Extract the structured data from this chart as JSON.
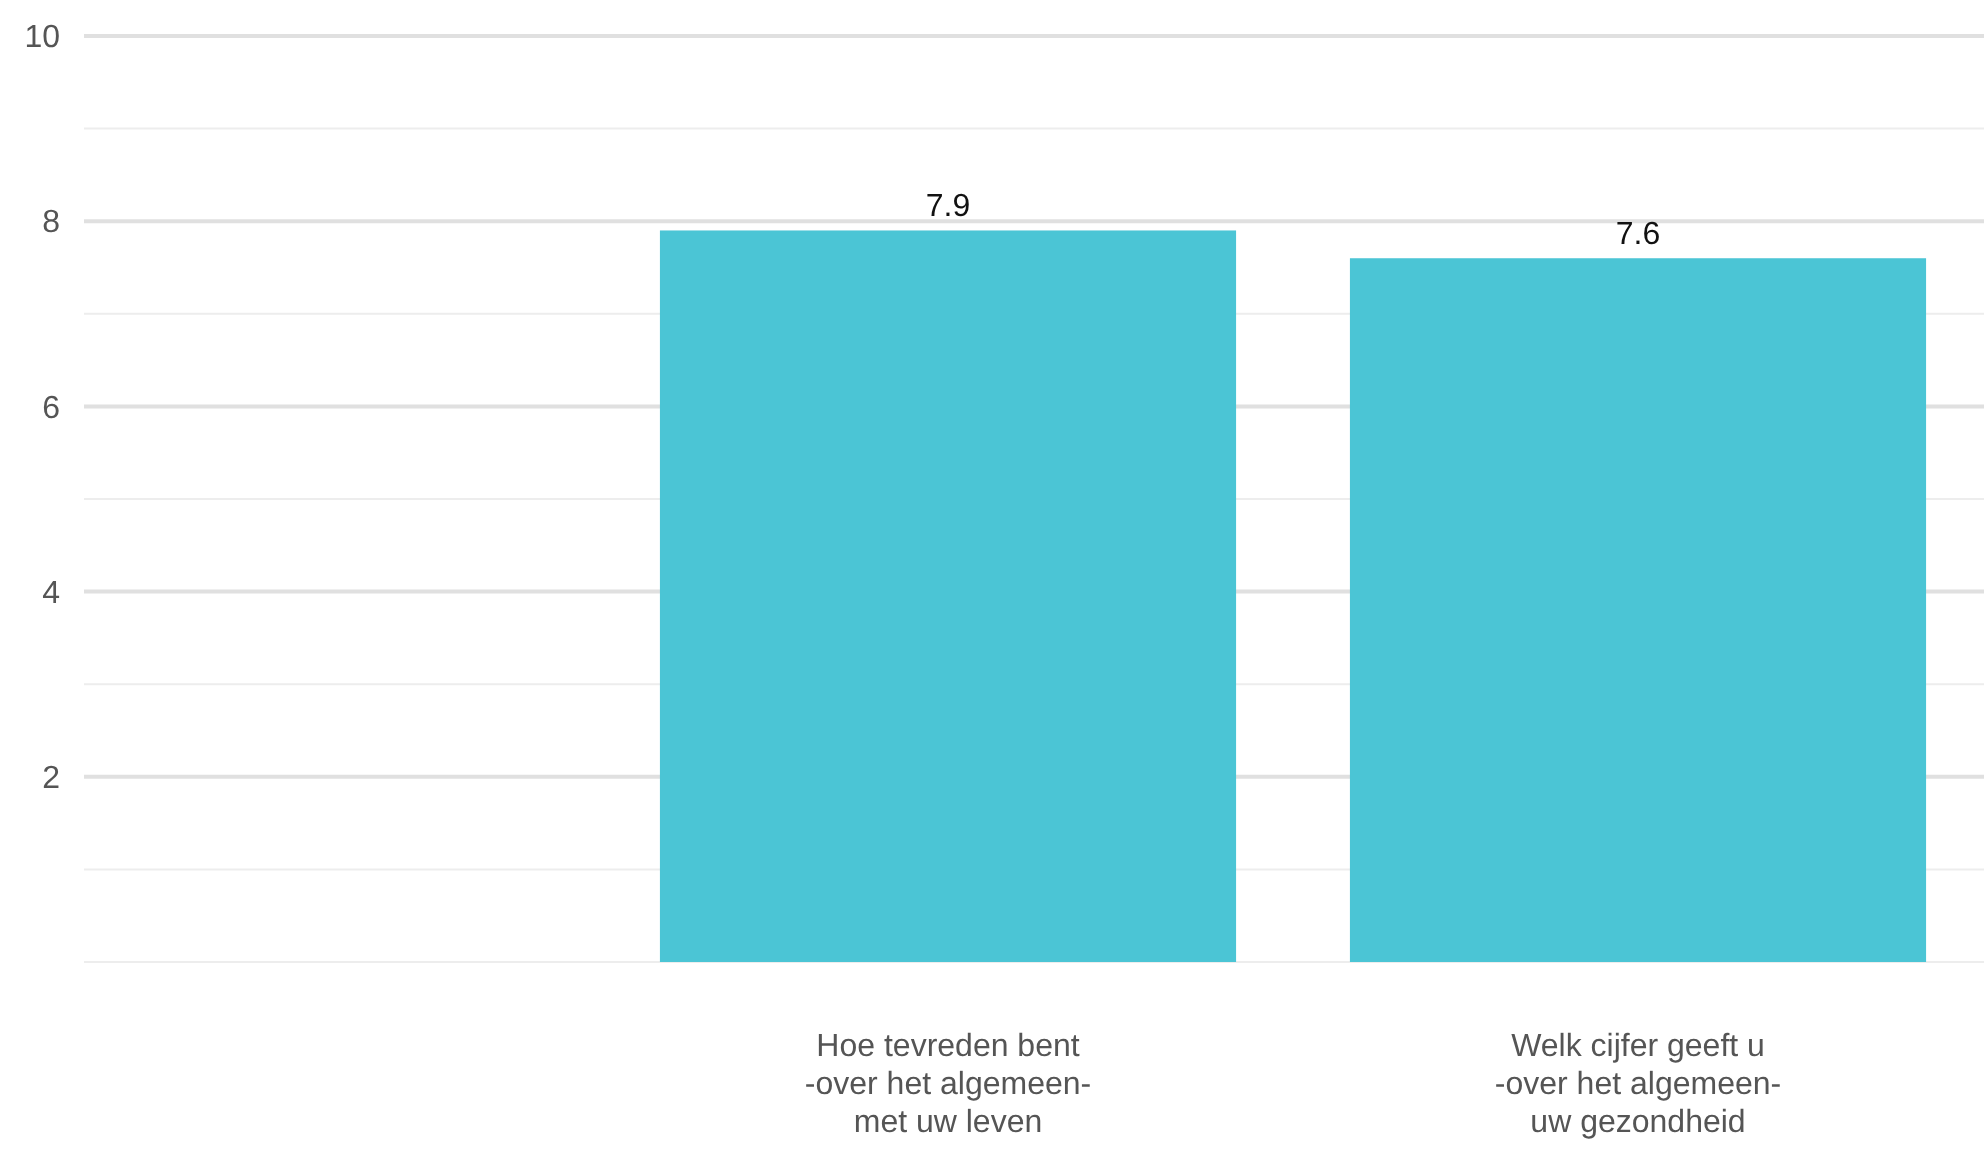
{
  "chart_data": {
    "type": "bar",
    "categories": [
      null,
      "Hoe tevreden bent\n-over het algemeen-\nmet uw leven",
      "Welk cijfer geeft u\n-over het algemeen-\nuw gezondheid"
    ],
    "values": [
      null,
      7.9,
      7.6
    ],
    "color": "#4bc5d5",
    "data_labels": true,
    "ylim": [
      0,
      10
    ],
    "yticks": [
      {
        "value": 0,
        "label": null
      },
      {
        "value": 1,
        "label": null
      },
      2,
      {
        "value": 3,
        "label": null
      },
      4,
      {
        "value": 5,
        "label": null
      },
      6,
      {
        "value": 7,
        "label": null
      },
      8,
      {
        "value": 9,
        "label": null
      },
      10
    ],
    "grid": "y"
  }
}
